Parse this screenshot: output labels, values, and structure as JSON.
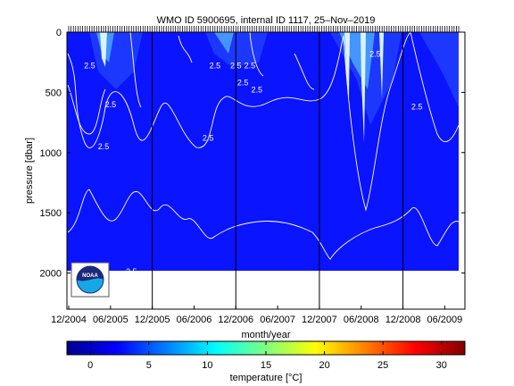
{
  "chart_data": {
    "type": "heatmap",
    "title": "WMO ID 5900695, internal ID 1117, 25–Nov–2019",
    "xlabel": "month/year",
    "ylabel": "pressure [dbar]",
    "xticks": [
      "12/2004",
      "06/2005",
      "12/2005",
      "06/2006",
      "12/2006",
      "06/2007",
      "12/2007",
      "06/2008",
      "12/2008",
      "06/2009"
    ],
    "yticks": [
      0,
      500,
      1000,
      1500,
      2000
    ],
    "ylim": [
      0,
      2300
    ],
    "y_reversed": true,
    "year_boundaries": [
      "12/2005",
      "12/2006",
      "12/2007",
      "12/2008"
    ],
    "contour_labels": [
      {
        "text": "2.5",
        "x": "03/2005",
        "y": 280
      },
      {
        "text": "2.5",
        "x": "06/2005",
        "y": 600
      },
      {
        "text": "2.5",
        "x": "05/2005",
        "y": 950
      },
      {
        "text": "2.5",
        "x": "09/2006",
        "y": 280
      },
      {
        "text": "2.5",
        "x": "08/2006",
        "y": 880
      },
      {
        "text": "2.5",
        "x": "12/2006",
        "y": 280
      },
      {
        "text": "2.5",
        "x": "02/2007",
        "y": 280
      },
      {
        "text": "2.5",
        "x": "01/2007",
        "y": 420
      },
      {
        "text": "2.5",
        "x": "03/2007",
        "y": 480
      },
      {
        "text": "2.5",
        "x": "08/2008",
        "y": 180
      },
      {
        "text": "2.5",
        "x": "02/2009",
        "y": 620
      },
      {
        "text": "2.5",
        "x": "09/2005",
        "y": 1990
      }
    ],
    "colorbar": {
      "label": "temperature [°C]",
      "ticks": [
        0,
        5,
        10,
        15,
        20,
        25,
        30
      ],
      "range": [
        -2,
        32
      ],
      "colormap": "jet"
    },
    "plot_background": "#0a14ff"
  },
  "logo": {
    "text": "NOAA"
  }
}
